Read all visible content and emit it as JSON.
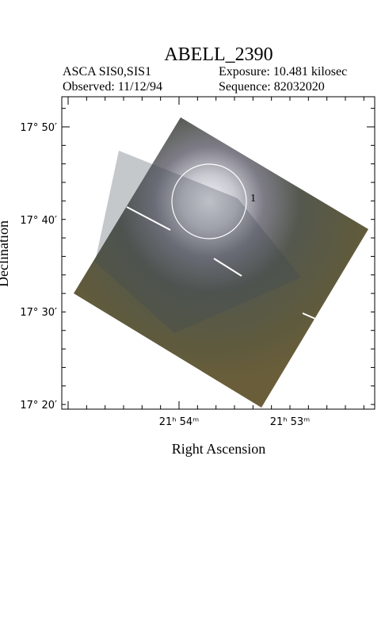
{
  "header": {
    "title": "ABELL_2390",
    "instrument": "ASCA SIS0,SIS1",
    "exposure": "Exposure: 10.481 kilosec",
    "observed": "Observed: 11/12/94",
    "sequence": "Sequence: 82032020"
  },
  "axes": {
    "x_label": "Right Ascension",
    "y_label": "Declination",
    "x_tick_labels": [
      "21ʰ 54ᵐ",
      "21ʰ 53ᵐ"
    ],
    "y_tick_labels": [
      "17° 50′",
      "17° 40′",
      "17° 30′",
      "17° 20′"
    ]
  },
  "regions": [
    {
      "label": "1"
    }
  ]
}
